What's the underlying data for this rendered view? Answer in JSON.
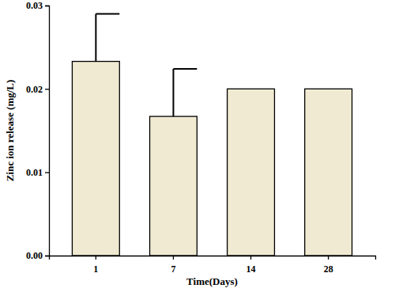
{
  "chart_data": {
    "type": "bar",
    "x_label": "Time(Days)",
    "y_label": "Zinc ion release (mg/L)",
    "categories": [
      "1",
      "7",
      "14",
      "28"
    ],
    "values": [
      0.0233,
      0.0167,
      0.02,
      0.02
    ],
    "errors": [
      0.0057,
      0.0057,
      null,
      null
    ],
    "color": "#f0ead2",
    "ylim": [
      0,
      0.03
    ],
    "yticks": [
      {
        "value": 0,
        "label": "0.00"
      },
      {
        "value": 0.01,
        "label": "0.01"
      },
      {
        "value": 0.02,
        "label": "0.02"
      },
      {
        "value": 0.03,
        "label": "0.03"
      }
    ],
    "grid": false
  }
}
